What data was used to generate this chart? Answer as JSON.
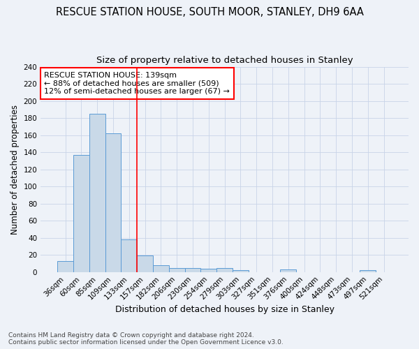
{
  "title": "RESCUE STATION HOUSE, SOUTH MOOR, STANLEY, DH9 6AA",
  "subtitle": "Size of property relative to detached houses in Stanley",
  "xlabel": "Distribution of detached houses by size in Stanley",
  "ylabel": "Number of detached properties",
  "categories": [
    "36sqm",
    "60sqm",
    "85sqm",
    "109sqm",
    "133sqm",
    "157sqm",
    "182sqm",
    "206sqm",
    "230sqm",
    "254sqm",
    "279sqm",
    "303sqm",
    "327sqm",
    "351sqm",
    "376sqm",
    "400sqm",
    "424sqm",
    "448sqm",
    "473sqm",
    "497sqm",
    "521sqm"
  ],
  "values": [
    13,
    137,
    185,
    162,
    38,
    19,
    8,
    5,
    5,
    4,
    5,
    2,
    0,
    0,
    3,
    0,
    0,
    0,
    0,
    2,
    0
  ],
  "bar_color": "#c9d9e8",
  "bar_edge_color": "#5b9bd5",
  "grid_color": "#c8d4e8",
  "background_color": "#eef2f8",
  "vline_x": 4.5,
  "vline_color": "red",
  "annotation_text": "RESCUE STATION HOUSE: 139sqm\n← 88% of detached houses are smaller (509)\n12% of semi-detached houses are larger (67) →",
  "annotation_box_color": "white",
  "annotation_box_edge": "red",
  "ylim": [
    0,
    240
  ],
  "yticks": [
    0,
    20,
    40,
    60,
    80,
    100,
    120,
    140,
    160,
    180,
    200,
    220,
    240
  ],
  "footer": "Contains HM Land Registry data © Crown copyright and database right 2024.\nContains public sector information licensed under the Open Government Licence v3.0.",
  "title_fontsize": 10.5,
  "subtitle_fontsize": 9.5,
  "xlabel_fontsize": 9,
  "ylabel_fontsize": 8.5,
  "tick_fontsize": 7.5,
  "footer_fontsize": 6.5,
  "annot_fontsize": 8
}
